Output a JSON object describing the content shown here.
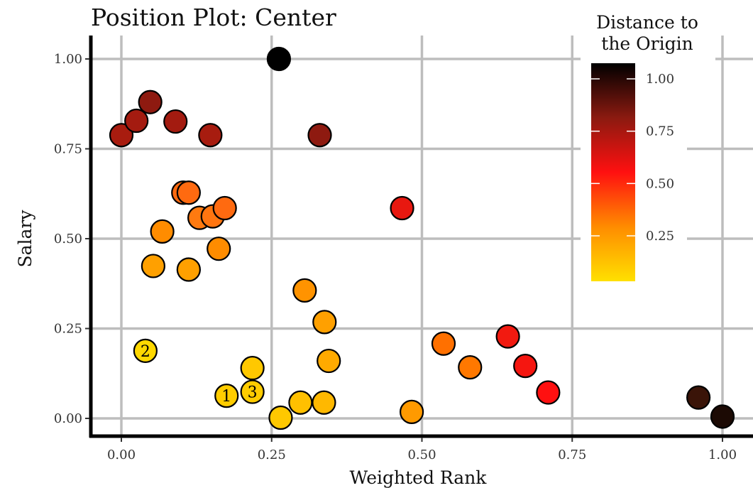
{
  "chart_data": {
    "type": "scatter",
    "title": "Position Plot: Center",
    "xlabel": "Weighted Rank",
    "ylabel": "Salary",
    "xlim": [
      -0.1,
      1.06
    ],
    "ylim": [
      -0.09,
      1.1
    ],
    "xticks": [
      "0.00",
      "0.25",
      "0.50",
      "0.75",
      "1.00"
    ],
    "yticks": [
      "0.00",
      "0.25",
      "0.50",
      "0.75",
      "1.00"
    ],
    "grid": true,
    "legend": {
      "title_lines": [
        "Distance to",
        "the Origin"
      ],
      "placement": "top-right",
      "ticks": [
        "1.00",
        "0.75",
        "0.50",
        "0.25"
      ],
      "colors": [
        "#000000",
        "#8B1A10",
        "#FF1010",
        "#FF8C00",
        "#FFE000"
      ]
    },
    "points": [
      {
        "x": 0.262,
        "y": 1.0,
        "color": "#000000",
        "label": ""
      },
      {
        "x": 0.0,
        "y": 0.788,
        "color": "#A81C0F",
        "label": ""
      },
      {
        "x": 0.025,
        "y": 0.828,
        "color": "#A41B10",
        "label": ""
      },
      {
        "x": 0.048,
        "y": 0.88,
        "color": "#8E1A10",
        "label": ""
      },
      {
        "x": 0.09,
        "y": 0.826,
        "color": "#A31B10",
        "label": ""
      },
      {
        "x": 0.148,
        "y": 0.788,
        "color": "#A71C0F",
        "label": ""
      },
      {
        "x": 0.33,
        "y": 0.788,
        "color": "#8E1A10",
        "label": ""
      },
      {
        "x": 0.103,
        "y": 0.628,
        "color": "#FF6A10",
        "label": ""
      },
      {
        "x": 0.112,
        "y": 0.628,
        "color": "#FF6A10",
        "label": ""
      },
      {
        "x": 0.13,
        "y": 0.558,
        "color": "#FF7A10",
        "label": ""
      },
      {
        "x": 0.152,
        "y": 0.562,
        "color": "#FF7510",
        "label": ""
      },
      {
        "x": 0.172,
        "y": 0.585,
        "color": "#FF6A10",
        "label": ""
      },
      {
        "x": 0.068,
        "y": 0.52,
        "color": "#FF8C00",
        "label": ""
      },
      {
        "x": 0.162,
        "y": 0.472,
        "color": "#FF8C00",
        "label": ""
      },
      {
        "x": 0.053,
        "y": 0.424,
        "color": "#FFA000",
        "label": ""
      },
      {
        "x": 0.112,
        "y": 0.414,
        "color": "#FFA000",
        "label": ""
      },
      {
        "x": 0.467,
        "y": 0.585,
        "color": "#E81810",
        "label": ""
      },
      {
        "x": 0.305,
        "y": 0.356,
        "color": "#FF9300",
        "label": ""
      },
      {
        "x": 0.338,
        "y": 0.268,
        "color": "#FFA000",
        "label": ""
      },
      {
        "x": 0.345,
        "y": 0.16,
        "color": "#FFAA00",
        "label": ""
      },
      {
        "x": 0.04,
        "y": 0.188,
        "color": "#FFD800",
        "label": "2"
      },
      {
        "x": 0.218,
        "y": 0.14,
        "color": "#FFC800",
        "label": ""
      },
      {
        "x": 0.175,
        "y": 0.063,
        "color": "#FFCC00",
        "label": "1"
      },
      {
        "x": 0.218,
        "y": 0.074,
        "color": "#FFCC00",
        "label": "3"
      },
      {
        "x": 0.265,
        "y": 0.002,
        "color": "#FFC800",
        "label": ""
      },
      {
        "x": 0.298,
        "y": 0.044,
        "color": "#FFC000",
        "label": ""
      },
      {
        "x": 0.337,
        "y": 0.044,
        "color": "#FFB800",
        "label": ""
      },
      {
        "x": 0.483,
        "y": 0.018,
        "color": "#FF9A00",
        "label": ""
      },
      {
        "x": 0.536,
        "y": 0.208,
        "color": "#FF7000",
        "label": ""
      },
      {
        "x": 0.58,
        "y": 0.142,
        "color": "#FF7800",
        "label": ""
      },
      {
        "x": 0.643,
        "y": 0.228,
        "color": "#F21A10",
        "label": ""
      },
      {
        "x": 0.672,
        "y": 0.146,
        "color": "#F51610",
        "label": ""
      },
      {
        "x": 0.71,
        "y": 0.072,
        "color": "#FF1010",
        "label": ""
      },
      {
        "x": 0.96,
        "y": 0.058,
        "color": "#3A1408",
        "label": ""
      },
      {
        "x": 1.0,
        "y": 0.005,
        "color": "#1C0A04",
        "label": ""
      }
    ]
  }
}
